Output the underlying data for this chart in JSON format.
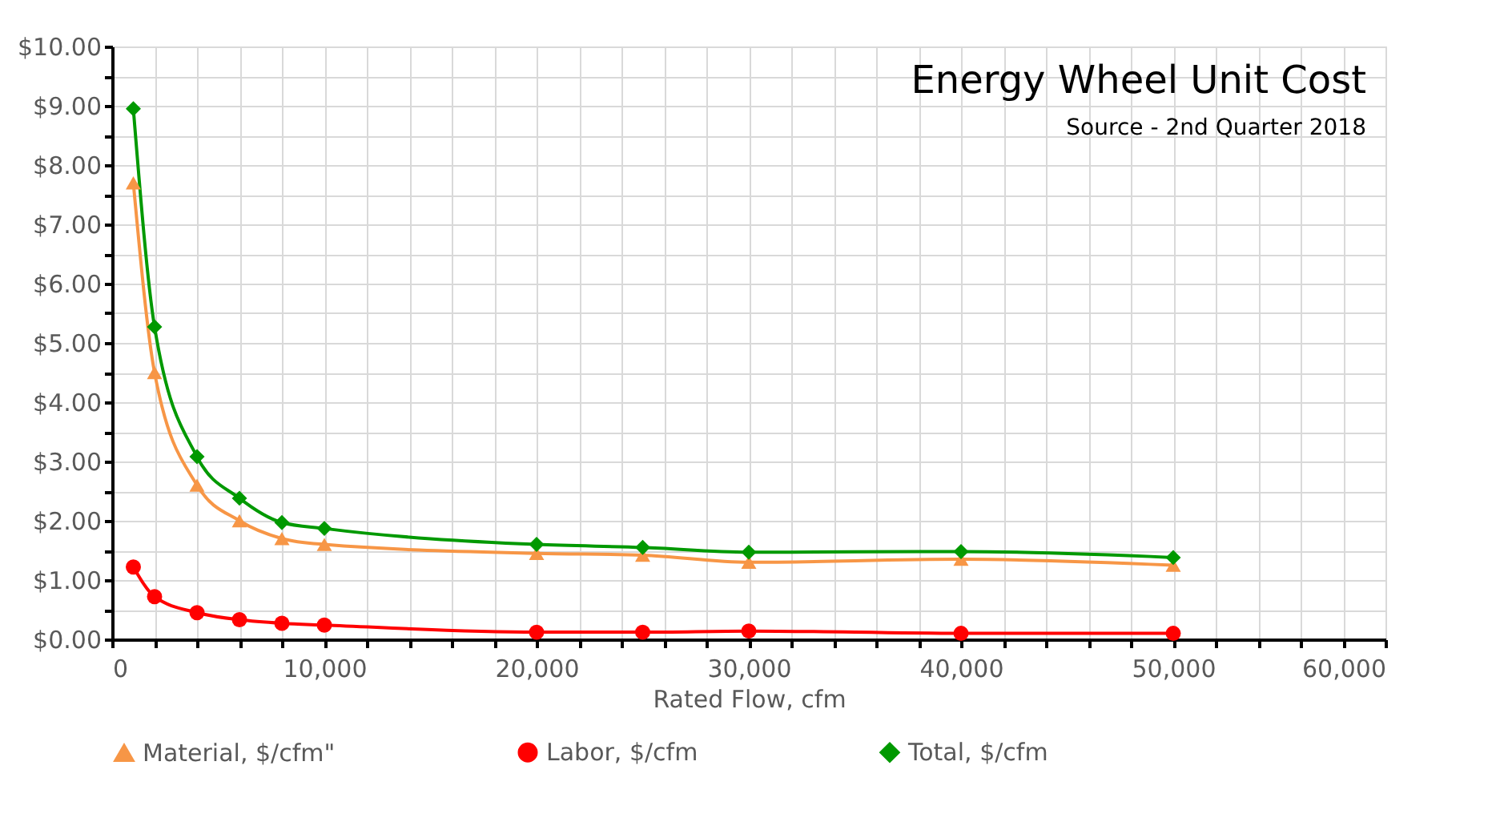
{
  "chart_data": {
    "type": "line",
    "title": "Energy Wheel Unit Cost",
    "annotations": [
      "Source - 2nd Quarter 2018"
    ],
    "xlabel": "Rated Flow, cfm",
    "x": [
      1000,
      2000,
      4000,
      6000,
      8000,
      10000,
      20000,
      25000,
      30000,
      40000,
      50000
    ],
    "series": [
      {
        "name": "Material, $/cfm\"",
        "color": "#f79646",
        "marker": "triangle",
        "values": [
          7.7,
          4.5,
          2.6,
          2.0,
          1.7,
          1.6,
          1.45,
          1.42,
          1.3,
          1.35,
          1.25
        ]
      },
      {
        "name": "Labor, $/cfm",
        "color": "#ff0000",
        "marker": "circle",
        "values": [
          1.22,
          0.72,
          0.45,
          0.33,
          0.27,
          0.24,
          0.12,
          0.12,
          0.14,
          0.1,
          0.1
        ]
      },
      {
        "name": "Total, $/cfm",
        "color": "#009900",
        "marker": "diamond",
        "values": [
          8.95,
          5.27,
          3.08,
          2.38,
          1.97,
          1.87,
          1.6,
          1.55,
          1.47,
          1.48,
          1.38
        ]
      }
    ],
    "xlim": [
      0,
      60000
    ],
    "xticks": [
      0,
      {
        "value": 2000,
        "label": null
      },
      {
        "value": 4000,
        "label": null
      },
      {
        "value": 6000,
        "label": null
      },
      {
        "value": 8000,
        "label": null
      },
      {
        "value": 10000,
        "label": "10,000"
      },
      {
        "value": 12000,
        "label": null
      },
      {
        "value": 14000,
        "label": null
      },
      {
        "value": 16000,
        "label": null
      },
      {
        "value": 18000,
        "label": null
      },
      {
        "value": 20000,
        "label": "20,000"
      },
      {
        "value": 22000,
        "label": null
      },
      {
        "value": 24000,
        "label": null
      },
      {
        "value": 26000,
        "label": null
      },
      {
        "value": 28000,
        "label": null
      },
      {
        "value": 30000,
        "label": "30,000"
      },
      {
        "value": 32000,
        "label": null
      },
      {
        "value": 34000,
        "label": null
      },
      {
        "value": 36000,
        "label": null
      },
      {
        "value": 38000,
        "label": null
      },
      {
        "value": 40000,
        "label": "40,000"
      },
      {
        "value": 42000,
        "label": null
      },
      {
        "value": 44000,
        "label": null
      },
      {
        "value": 46000,
        "label": null
      },
      {
        "value": 48000,
        "label": null
      },
      {
        "value": 50000,
        "label": "50,000"
      },
      {
        "value": 52000,
        "label": null
      },
      {
        "value": 54000,
        "label": null
      },
      {
        "value": 56000,
        "label": null
      },
      {
        "value": 58000,
        "label": null
      },
      {
        "value": 60000,
        "label": "60,000"
      }
    ],
    "ylim": [
      0,
      10
    ],
    "yticks": [
      {
        "value": 0,
        "label": "$0.00"
      },
      {
        "value": 0.5,
        "label": null
      },
      {
        "value": 1,
        "label": "$1.00"
      },
      {
        "value": 1.5,
        "label": null
      },
      {
        "value": 2,
        "label": "$2.00"
      },
      {
        "value": 2.5,
        "label": null
      },
      {
        "value": 3,
        "label": "$3.00"
      },
      {
        "value": 3.5,
        "label": null
      },
      {
        "value": 4,
        "label": "$4.00"
      },
      {
        "value": 4.5,
        "label": null
      },
      {
        "value": 5,
        "label": "$5.00"
      },
      {
        "value": 5.5,
        "label": null
      },
      {
        "value": 6,
        "label": "$6.00"
      },
      {
        "value": 6.5,
        "label": null
      },
      {
        "value": 7,
        "label": "$7.00"
      },
      {
        "value": 7.5,
        "label": null
      },
      {
        "value": 8,
        "label": "$8.00"
      },
      {
        "value": 8.5,
        "label": null
      },
      {
        "value": 9,
        "label": "$9.00"
      },
      {
        "value": 9.5,
        "label": null
      },
      {
        "value": 10,
        "label": "$10.00"
      }
    ],
    "grid": true,
    "legend": "bottom",
    "line_style": "solid"
  }
}
